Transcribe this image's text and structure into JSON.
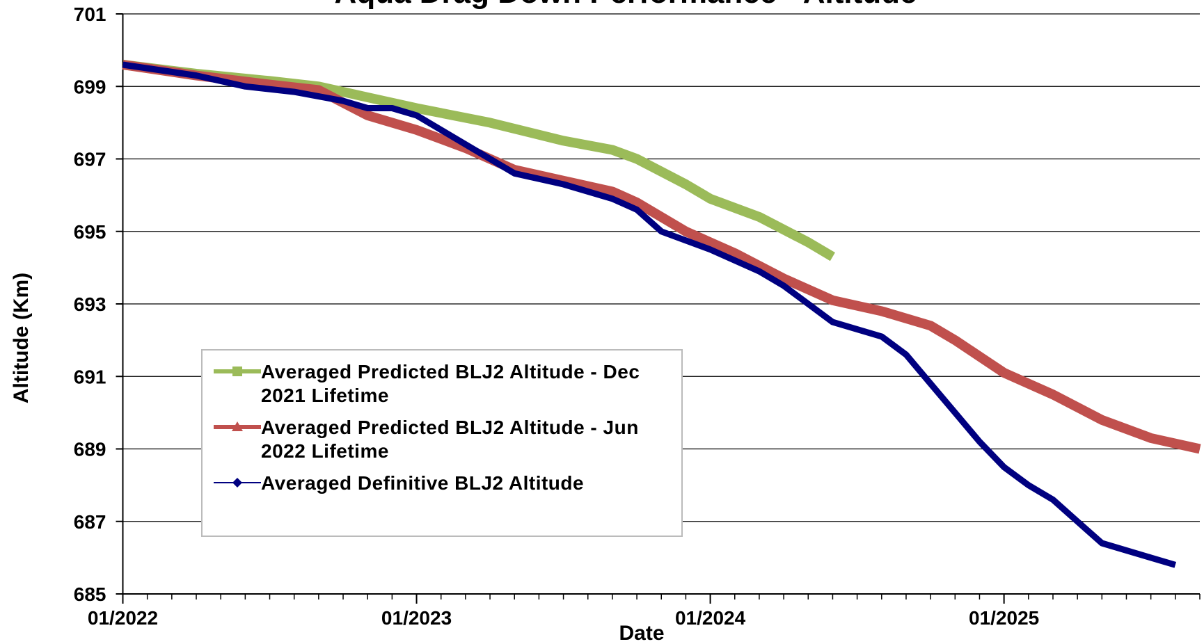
{
  "chart_data": {
    "type": "line",
    "title": "Aqua Drag Down Performance - Altitude",
    "xlabel": "Date",
    "ylabel": "Altitude (Km)",
    "xlim": [
      "2022-01",
      "2025-09"
    ],
    "xticks": [
      {
        "value": "2022-01",
        "label": "01/2022"
      },
      {
        "value": "2023-01",
        "label": "01/2023"
      },
      {
        "value": "2024-01",
        "label": "01/2024"
      },
      {
        "value": "2025-01",
        "label": "01/2025"
      }
    ],
    "ylim": [
      685,
      701
    ],
    "yticks": [
      685,
      687,
      689,
      691,
      693,
      695,
      697,
      699,
      701
    ],
    "grid": true,
    "legend": "lower left",
    "series": [
      {
        "name": "Averaged Predicted BLJ2 Altitude - Dec 2021 Lifetime",
        "color": "#9bbb59",
        "marker": "square",
        "x": [
          "2022-01",
          "2022-04",
          "2022-07",
          "2022-09",
          "2022-11",
          "2023-01",
          "2023-04",
          "2023-07",
          "2023-09",
          "2023-10",
          "2023-12",
          "2024-01",
          "2024-03",
          "2024-05",
          "2024-06"
        ],
        "values": [
          699.6,
          699.35,
          699.15,
          699.0,
          698.7,
          698.4,
          698.0,
          697.5,
          697.25,
          697.0,
          696.3,
          695.9,
          695.4,
          694.7,
          694.3
        ]
      },
      {
        "name": "Averaged Predicted BLJ2 Altitude - Jun 2022 Lifetime",
        "color": "#c0504d",
        "marker": "triangle",
        "x": [
          "2022-01",
          "2022-04",
          "2022-07",
          "2022-09",
          "2022-11",
          "2023-01",
          "2023-03",
          "2023-05",
          "2023-07",
          "2023-09",
          "2023-10",
          "2023-12",
          "2024-02",
          "2024-04",
          "2024-06",
          "2024-08",
          "2024-10",
          "2024-11",
          "2025-01",
          "2025-03",
          "2025-05",
          "2025-07",
          "2025-09"
        ],
        "values": [
          699.6,
          699.3,
          699.05,
          698.9,
          698.2,
          697.8,
          697.3,
          696.7,
          696.4,
          696.1,
          695.8,
          695.0,
          694.4,
          693.7,
          693.1,
          692.8,
          692.4,
          692.0,
          691.1,
          690.5,
          689.8,
          689.3,
          689.0
        ]
      },
      {
        "name": "Averaged Definitive BLJ2 Altitude",
        "color": "#000080",
        "marker": "diamond",
        "x": [
          "2022-01",
          "2022-04",
          "2022-06",
          "2022-08",
          "2022-10",
          "2022-11",
          "2022-12",
          "2023-01",
          "2023-02",
          "2023-04",
          "2023-05",
          "2023-07",
          "2023-09",
          "2023-10",
          "2023-11",
          "2024-01",
          "2024-03",
          "2024-04",
          "2024-05",
          "2024-06",
          "2024-08",
          "2024-09",
          "2024-10",
          "2024-11",
          "2024-12",
          "2025-01",
          "2025-02",
          "2025-03",
          "2025-04",
          "2025-05",
          "2025-07",
          "2025-08"
        ],
        "values": [
          699.6,
          699.3,
          699.0,
          698.85,
          698.6,
          698.4,
          698.4,
          698.2,
          697.8,
          697.0,
          696.6,
          696.3,
          695.9,
          695.6,
          695.0,
          694.5,
          693.9,
          693.5,
          693.0,
          692.5,
          692.1,
          691.6,
          690.8,
          690.0,
          689.2,
          688.5,
          688.0,
          687.6,
          687.0,
          686.4,
          686.0,
          685.8
        ]
      }
    ]
  }
}
